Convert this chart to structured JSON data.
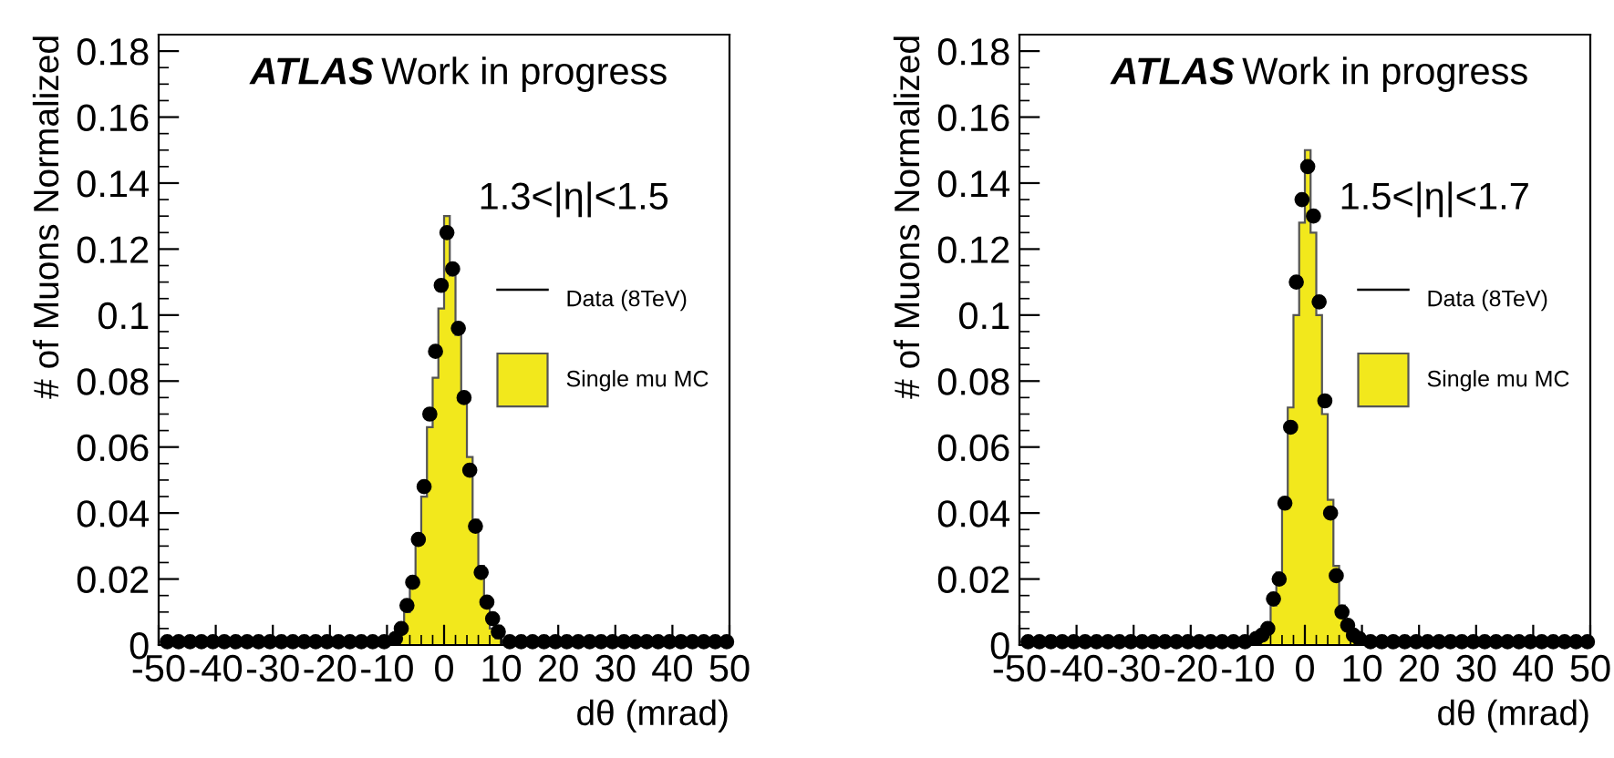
{
  "chart_data": [
    {
      "type": "histogram",
      "title": "ATLAS",
      "subtitle": "Work in progress",
      "annotations": [
        "1.3<|η|<1.5"
      ],
      "xlabel": "dθ (mrad)",
      "ylabel": "# of Muons Normalized",
      "bins": [
        -9,
        -8,
        -7,
        -6,
        -5,
        -4,
        -3,
        -2,
        -1,
        0,
        1,
        2,
        3,
        4,
        5,
        6,
        7,
        8,
        9,
        10
      ],
      "xlim": [
        -50,
        50
      ],
      "xticks": [
        -50,
        -40,
        -30,
        -20,
        -10,
        0,
        10,
        20,
        30,
        40,
        50
      ],
      "ylim": [
        0,
        0.185
      ],
      "yticks": [
        0,
        0.02,
        0.04,
        0.06,
        0.08,
        0.1,
        0.12,
        0.14,
        0.16,
        0.18
      ],
      "legend": "right",
      "grid": false,
      "marker": "circle",
      "series": [
        {
          "name": "Single mu MC",
          "color": "#f2e81c",
          "values": [
            0.001,
            0.004,
            0.01,
            0.02,
            0.031,
            0.045,
            0.066,
            0.081,
            0.102,
            0.13,
            0.112,
            0.094,
            0.076,
            0.057,
            0.038,
            0.024,
            0.012,
            0.005,
            0.002
          ]
        },
        {
          "name": "Data (8TeV)",
          "type": "scatter",
          "color": "#000000",
          "x": [
            -48.5,
            -46.5,
            -44.5,
            -42.5,
            -40.5,
            -38.5,
            -36.5,
            -34.5,
            -32.5,
            -30.5,
            -28.5,
            -26.5,
            -24.5,
            -22.5,
            -20.5,
            -18.5,
            -16.5,
            -14.5,
            -12.5,
            -10.5,
            -8.5,
            -7.5,
            -6.5,
            -5.5,
            -4.5,
            -3.5,
            -2.5,
            -1.5,
            -0.5,
            0.5,
            1.5,
            2.5,
            3.5,
            4.5,
            5.5,
            6.5,
            7.5,
            8.5,
            9.5,
            11.5,
            13.5,
            15.5,
            17.5,
            19.5,
            21.5,
            23.5,
            25.5,
            27.5,
            29.5,
            31.5,
            33.5,
            35.5,
            37.5,
            39.5,
            41.5,
            43.5,
            45.5,
            47.5,
            49.5
          ],
          "values": [
            0.001,
            0.001,
            0.001,
            0.001,
            0.001,
            0.001,
            0.001,
            0.001,
            0.001,
            0.001,
            0.001,
            0.001,
            0.001,
            0.001,
            0.001,
            0.001,
            0.001,
            0.001,
            0.001,
            0.001,
            0.002,
            0.005,
            0.012,
            0.019,
            0.032,
            0.048,
            0.07,
            0.089,
            0.109,
            0.125,
            0.114,
            0.096,
            0.075,
            0.053,
            0.036,
            0.022,
            0.013,
            0.008,
            0.004,
            0.001,
            0.001,
            0.001,
            0.001,
            0.001,
            0.001,
            0.001,
            0.001,
            0.001,
            0.001,
            0.001,
            0.001,
            0.001,
            0.001,
            0.001,
            0.001,
            0.001,
            0.001,
            0.001,
            0.001
          ]
        }
      ]
    },
    {
      "type": "histogram",
      "title": "ATLAS",
      "subtitle": "Work in progress",
      "annotations": [
        "1.5<|η|<1.7"
      ],
      "xlabel": "dθ (mrad)",
      "ylabel": "# of Muons Normalized",
      "bins": [
        -9,
        -8,
        -7,
        -6,
        -5,
        -4,
        -3,
        -2,
        -1,
        0,
        1,
        2,
        3,
        4,
        5,
        6,
        7,
        8,
        9,
        10
      ],
      "xlim": [
        -50,
        50
      ],
      "xticks": [
        -50,
        -40,
        -30,
        -20,
        -10,
        0,
        10,
        20,
        30,
        40,
        50
      ],
      "ylim": [
        0,
        0.185
      ],
      "yticks": [
        0,
        0.02,
        0.04,
        0.06,
        0.08,
        0.1,
        0.12,
        0.14,
        0.16,
        0.18
      ],
      "legend": "right",
      "grid": false,
      "marker": "circle",
      "series": [
        {
          "name": "Single mu MC",
          "color": "#f2e81c",
          "values": [
            0.001,
            0.003,
            0.006,
            0.012,
            0.022,
            0.044,
            0.072,
            0.1,
            0.128,
            0.15,
            0.125,
            0.1,
            0.07,
            0.044,
            0.024,
            0.012,
            0.005,
            0.002,
            0.001
          ]
        },
        {
          "name": "Data (8TeV)",
          "type": "scatter",
          "color": "#000000",
          "x": [
            -48.5,
            -46.5,
            -44.5,
            -42.5,
            -40.5,
            -38.5,
            -36.5,
            -34.5,
            -32.5,
            -30.5,
            -28.5,
            -26.5,
            -24.5,
            -22.5,
            -20.5,
            -18.5,
            -16.5,
            -14.5,
            -12.5,
            -10.5,
            -8.5,
            -7.5,
            -6.5,
            -5.5,
            -4.5,
            -3.5,
            -2.5,
            -1.5,
            -0.5,
            0.5,
            1.5,
            2.5,
            3.5,
            4.5,
            5.5,
            6.5,
            7.5,
            8.5,
            9.5,
            11.5,
            13.5,
            15.5,
            17.5,
            19.5,
            21.5,
            23.5,
            25.5,
            27.5,
            29.5,
            31.5,
            33.5,
            35.5,
            37.5,
            39.5,
            41.5,
            43.5,
            45.5,
            47.5,
            49.5
          ],
          "values": [
            0.001,
            0.001,
            0.001,
            0.001,
            0.001,
            0.001,
            0.001,
            0.001,
            0.001,
            0.001,
            0.001,
            0.001,
            0.001,
            0.001,
            0.001,
            0.001,
            0.001,
            0.001,
            0.001,
            0.001,
            0.002,
            0.003,
            0.005,
            0.014,
            0.02,
            0.043,
            0.066,
            0.11,
            0.135,
            0.145,
            0.13,
            0.104,
            0.074,
            0.04,
            0.021,
            0.01,
            0.006,
            0.003,
            0.002,
            0.001,
            0.001,
            0.001,
            0.001,
            0.001,
            0.001,
            0.001,
            0.001,
            0.001,
            0.001,
            0.001,
            0.001,
            0.001,
            0.001,
            0.001,
            0.001,
            0.001,
            0.001,
            0.001,
            0.001
          ]
        }
      ]
    }
  ]
}
